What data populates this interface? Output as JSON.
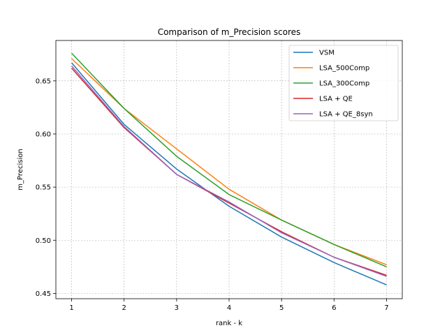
{
  "chart_data": {
    "type": "line",
    "title": "Comparison of m_Precision scores",
    "xlabel": "rank - k",
    "ylabel": "m_Precision",
    "x": [
      1,
      2,
      3,
      4,
      5,
      6,
      7
    ],
    "xlim": [
      0.7,
      7.3
    ],
    "ylim": [
      0.445,
      0.688
    ],
    "xticks": [
      1,
      2,
      3,
      4,
      5,
      6,
      7
    ],
    "yticks": [
      0.45,
      0.5,
      0.55,
      0.6,
      0.65
    ],
    "ytick_labels": [
      "0.45",
      "0.50",
      "0.55",
      "0.60",
      "0.65"
    ],
    "grid": true,
    "legend_position": "top-right",
    "series": [
      {
        "name": "VSM",
        "color": "#1f77b4",
        "values": [
          0.667,
          0.609,
          0.567,
          0.532,
          0.503,
          0.479,
          0.458
        ]
      },
      {
        "name": "LSA_500Comp",
        "color": "#ff7f0e",
        "values": [
          0.671,
          0.624,
          0.586,
          0.548,
          0.519,
          0.496,
          0.477
        ]
      },
      {
        "name": "LSA_300Comp",
        "color": "#2ca02c",
        "values": [
          0.676,
          0.624,
          0.579,
          0.543,
          0.519,
          0.496,
          0.475
        ]
      },
      {
        "name": "LSA + QE",
        "color": "#d62728",
        "values": [
          0.662,
          0.606,
          0.562,
          0.535,
          0.508,
          0.484,
          0.467
        ]
      },
      {
        "name": "LSA + QE_8syn",
        "color": "#9467bd",
        "values": [
          0.664,
          0.607,
          0.562,
          0.536,
          0.507,
          0.484,
          0.466
        ]
      }
    ]
  }
}
